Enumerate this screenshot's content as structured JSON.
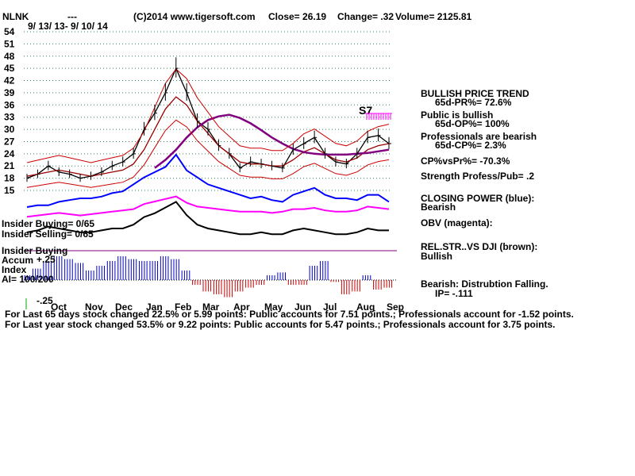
{
  "header": {
    "symbol": "NLNK",
    "dashes": "---",
    "copyright": "(C)2014 www.tigersoft.com",
    "close": "Close=  26.19",
    "change": "Change= .32",
    "volume": "Volume= 2125.81",
    "date_range": "9/ 13/ 13-  9/ 10/ 14"
  },
  "chart_data": {
    "type": "line",
    "title": "NLNK",
    "ylim": [
      15,
      54
    ],
    "y_ticks": [
      "54",
      "51",
      "48",
      "45",
      "42",
      "39",
      "36",
      "33",
      "30",
      "27",
      "24",
      "21",
      "18",
      "15"
    ],
    "x_ticks": [
      "Oct",
      "Nov",
      "Dec",
      "Jan",
      "Feb",
      "Mar",
      "Apr",
      "May",
      "Jun",
      "Jul",
      "Aug",
      "Sep"
    ],
    "x": [
      "Sep",
      "Oct",
      "Oct",
      "Oct",
      "Nov",
      "Nov",
      "Nov",
      "Dec",
      "Dec",
      "Dec",
      "Jan",
      "Jan",
      "Jan",
      "Feb",
      "Feb",
      "Feb",
      "Mar",
      "Mar",
      "Mar",
      "Apr",
      "Apr",
      "Apr",
      "May",
      "May",
      "May",
      "Jun",
      "Jun",
      "Jun",
      "Jul",
      "Jul",
      "Jul",
      "Aug",
      "Aug",
      "Aug",
      "Sep"
    ],
    "series": [
      {
        "name": "",
        "color": "#000000",
        "values": [
          18,
          19,
          21,
          19.5,
          19,
          18,
          18.5,
          19.5,
          21,
          22,
          24,
          30,
          34,
          39,
          45,
          39,
          32,
          30,
          26,
          24,
          20.5,
          22,
          21.5,
          21,
          20.5,
          25,
          26.5,
          28,
          24,
          22,
          21.5,
          24,
          28,
          28.5,
          26.5
        ]
      },
      {
        "name": "",
        "color": "#990000",
        "values": [
          18.5,
          19,
          19.5,
          20,
          19.5,
          19,
          18.5,
          19,
          19.5,
          20,
          21.5,
          25,
          30,
          35,
          38,
          36,
          32,
          29,
          26,
          24,
          22,
          21.5,
          21.5,
          21,
          21,
          22.5,
          24.5,
          25.5,
          24,
          22.5,
          22,
          23,
          25,
          26,
          26.5
        ]
      },
      {
        "name": "",
        "color": "#800080",
        "values": [
          null,
          null,
          null,
          null,
          null,
          null,
          null,
          null,
          null,
          null,
          null,
          null,
          20.5,
          22.5,
          25,
          28,
          30.5,
          32.3,
          33.2,
          33.6,
          32.8,
          31.5,
          29.8,
          28,
          26.5,
          25.2,
          24.4,
          24,
          23.8,
          23.8,
          23.8,
          24,
          24.2,
          24.6,
          25
        ]
      }
    ],
    "annotations": [
      "S7"
    ],
    "right_panel": [
      "BULLISH PRICE TREND",
      "65d-PR%= 72.6%",
      "Public is bullish",
      "65d-OP%= 100%",
      "Professionals are bearish",
      "65d-CP%= 2.3%",
      "CP%vsPr%= -70.3%",
      "Strength Profess/Pub= .2",
      "CLOSING POWER (blue):",
      "Bearish",
      "OBV (magenta):",
      "REL.STR..VS DJI (brown):",
      "Bullish",
      "Bearish: Distrubtion Falling.",
      "IP= -.111"
    ],
    "left_labels": {
      "insider_buying": "Insider Buying= 0/65",
      "insider_selling": "Insider Selling= 0/65",
      "insider_buying2": "Insider Buying",
      "accum": "Accum",
      "plus25": "+.25",
      "index": "Index",
      "ai": "AI= 100/200",
      "minus25": "-.25"
    },
    "indicators": {
      "closing_power": {
        "color": "#0000ff",
        "values": [
          5,
          6,
          6,
          8,
          9,
          10,
          10,
          11,
          13,
          14,
          18,
          22,
          25,
          28,
          35,
          26,
          22,
          18,
          16,
          14,
          12,
          10,
          11,
          9,
          8,
          12,
          14,
          16,
          12,
          10,
          10,
          9,
          12,
          12,
          8
        ]
      },
      "obv": {
        "color": "#ff00ff",
        "values": [
          3,
          4,
          5,
          6,
          5,
          4,
          5,
          6,
          7,
          8,
          9,
          13,
          15,
          17,
          19,
          14,
          11,
          10,
          9,
          8,
          7,
          7,
          7,
          6,
          7,
          9,
          9,
          10,
          8,
          7,
          7,
          8,
          11,
          10,
          9
        ]
      },
      "relstr": {
        "color": "#000000",
        "values": [
          8,
          9,
          11,
          10,
          9,
          8,
          8,
          9,
          10,
          10,
          12,
          16,
          18,
          21,
          24,
          17,
          12,
          10,
          9,
          8,
          7,
          7,
          8,
          7,
          7,
          9,
          10,
          9,
          8,
          7,
          7,
          8,
          10,
          9,
          9
        ]
      },
      "accum_index": {
        "values": [
          0.05,
          0.12,
          0.2,
          0.25,
          0.22,
          0.18,
          0.1,
          0.15,
          0.2,
          0.25,
          0.22,
          0.2,
          0.2,
          0.25,
          0.22,
          0.1,
          -0.05,
          -0.12,
          -0.15,
          -0.18,
          -0.12,
          -0.08,
          -0.05,
          0.05,
          0.08,
          -0.05,
          -0.05,
          0.15,
          0.2,
          -0.02,
          -0.15,
          -0.12,
          0.05,
          -0.1,
          -0.08
        ]
      }
    }
  },
  "footer": {
    "line1": "For Last 65 days stock changed  22.5% or  5.99 points:  Public accounts for  7.51 points.;  Professionals account for -1.52 points.",
    "line2": "For Last year stock changed  53.5% or  9.22 points:  Public accounts for  5.47 points.;  Professionals account for  3.75 points."
  }
}
